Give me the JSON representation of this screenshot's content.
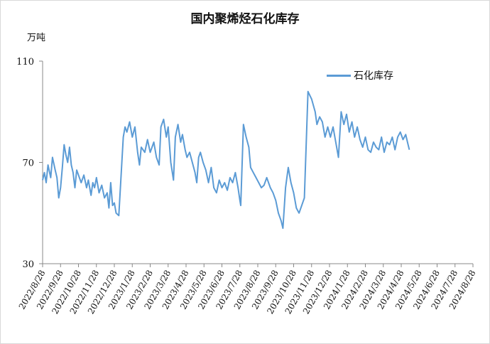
{
  "chart_data": {
    "type": "line",
    "title": "国内聚烯烃石化库存",
    "unit": "万吨",
    "legend_position": "top-right",
    "grid": false,
    "ylim": [
      30,
      110
    ],
    "yticks": [
      30,
      70,
      110
    ],
    "x_tick_labels": [
      "2022/8/28",
      "2022/9/28",
      "2022/10/28",
      "2022/11/28",
      "2022/12/28",
      "2023/1/28",
      "2023/2/28",
      "2023/3/28",
      "2023/4/28",
      "2023/5/28",
      "2023/6/28",
      "2023/7/28",
      "2023/8/28",
      "2023/9/28",
      "2023/10/28",
      "2023/11/28",
      "2023/12/28",
      "2024/1/28",
      "2024/2/28",
      "2024/3/28",
      "2024/4/28",
      "2024/5/28",
      "2024/6/28",
      "2024/7/28",
      "2024/8/28"
    ],
    "series": [
      {
        "name": "石化库存",
        "color": "#5b9bd5",
        "points": [
          [
            0,
            63
          ],
          [
            0.1,
            66
          ],
          [
            0.2,
            62
          ],
          [
            0.3,
            69
          ],
          [
            0.45,
            64
          ],
          [
            0.55,
            72
          ],
          [
            0.7,
            67
          ],
          [
            0.8,
            64
          ],
          [
            0.9,
            56
          ],
          [
            1.0,
            60
          ],
          [
            1.1,
            68
          ],
          [
            1.2,
            77
          ],
          [
            1.3,
            73
          ],
          [
            1.4,
            70
          ],
          [
            1.5,
            76
          ],
          [
            1.6,
            69
          ],
          [
            1.7,
            66
          ],
          [
            1.8,
            60
          ],
          [
            1.9,
            67
          ],
          [
            2.0,
            65
          ],
          [
            2.15,
            62
          ],
          [
            2.3,
            65
          ],
          [
            2.45,
            60
          ],
          [
            2.55,
            63
          ],
          [
            2.7,
            57
          ],
          [
            2.8,
            62
          ],
          [
            2.9,
            60
          ],
          [
            3.0,
            64
          ],
          [
            3.15,
            58
          ],
          [
            3.3,
            61
          ],
          [
            3.45,
            56
          ],
          [
            3.6,
            58
          ],
          [
            3.7,
            52
          ],
          [
            3.8,
            62
          ],
          [
            3.9,
            53
          ],
          [
            4.0,
            54
          ],
          [
            4.1,
            50
          ],
          [
            4.25,
            49
          ],
          [
            4.5,
            80
          ],
          [
            4.6,
            84
          ],
          [
            4.7,
            82
          ],
          [
            4.85,
            86
          ],
          [
            5.0,
            80
          ],
          [
            5.15,
            84
          ],
          [
            5.3,
            74
          ],
          [
            5.4,
            69
          ],
          [
            5.5,
            76
          ],
          [
            5.7,
            74
          ],
          [
            5.85,
            79
          ],
          [
            6.0,
            74
          ],
          [
            6.2,
            78
          ],
          [
            6.35,
            72
          ],
          [
            6.5,
            69
          ],
          [
            6.6,
            84
          ],
          [
            6.75,
            87
          ],
          [
            6.9,
            80
          ],
          [
            7.0,
            84
          ],
          [
            7.15,
            70
          ],
          [
            7.3,
            63
          ],
          [
            7.4,
            80
          ],
          [
            7.55,
            85
          ],
          [
            7.7,
            78
          ],
          [
            7.8,
            81
          ],
          [
            7.95,
            75
          ],
          [
            8.05,
            72
          ],
          [
            8.2,
            74
          ],
          [
            8.35,
            70
          ],
          [
            8.5,
            66
          ],
          [
            8.6,
            62
          ],
          [
            8.7,
            72
          ],
          [
            8.8,
            74
          ],
          [
            8.95,
            70
          ],
          [
            9.1,
            67
          ],
          [
            9.25,
            62
          ],
          [
            9.4,
            68
          ],
          [
            9.55,
            60
          ],
          [
            9.7,
            58
          ],
          [
            9.85,
            63
          ],
          [
            10.0,
            60
          ],
          [
            10.15,
            62
          ],
          [
            10.3,
            59
          ],
          [
            10.45,
            64
          ],
          [
            10.6,
            62
          ],
          [
            10.75,
            66
          ],
          [
            10.9,
            60
          ],
          [
            11.0,
            55
          ],
          [
            11.05,
            53
          ],
          [
            11.2,
            85
          ],
          [
            11.35,
            80
          ],
          [
            11.5,
            76
          ],
          [
            11.6,
            68
          ],
          [
            11.75,
            66
          ],
          [
            11.9,
            64
          ],
          [
            12.05,
            62
          ],
          [
            12.2,
            60
          ],
          [
            12.35,
            61
          ],
          [
            12.5,
            64
          ],
          [
            12.7,
            60
          ],
          [
            12.85,
            58
          ],
          [
            13.0,
            55
          ],
          [
            13.15,
            50
          ],
          [
            13.3,
            47
          ],
          [
            13.4,
            44
          ],
          [
            13.55,
            60
          ],
          [
            13.7,
            68
          ],
          [
            13.85,
            62
          ],
          [
            14.0,
            58
          ],
          [
            14.15,
            52
          ],
          [
            14.3,
            50
          ],
          [
            14.45,
            53
          ],
          [
            14.6,
            56
          ],
          [
            14.8,
            98
          ],
          [
            15.0,
            95
          ],
          [
            15.2,
            90
          ],
          [
            15.3,
            85
          ],
          [
            15.45,
            88
          ],
          [
            15.6,
            86
          ],
          [
            15.75,
            80
          ],
          [
            15.9,
            84
          ],
          [
            16.05,
            80
          ],
          [
            16.2,
            84
          ],
          [
            16.35,
            78
          ],
          [
            16.5,
            72
          ],
          [
            16.65,
            90
          ],
          [
            16.8,
            85
          ],
          [
            16.95,
            89
          ],
          [
            17.1,
            82
          ],
          [
            17.25,
            86
          ],
          [
            17.4,
            80
          ],
          [
            17.55,
            84
          ],
          [
            17.7,
            79
          ],
          [
            17.85,
            76
          ],
          [
            18.0,
            80
          ],
          [
            18.15,
            75
          ],
          [
            18.3,
            74
          ],
          [
            18.45,
            78
          ],
          [
            18.6,
            76
          ],
          [
            18.75,
            75
          ],
          [
            18.9,
            80
          ],
          [
            19.05,
            74
          ],
          [
            19.2,
            78
          ],
          [
            19.35,
            77
          ],
          [
            19.5,
            80
          ],
          [
            19.65,
            75
          ],
          [
            19.8,
            80
          ],
          [
            19.95,
            82
          ],
          [
            20.1,
            79
          ],
          [
            20.25,
            81
          ],
          [
            20.35,
            78
          ],
          [
            20.45,
            75
          ]
        ]
      }
    ]
  }
}
